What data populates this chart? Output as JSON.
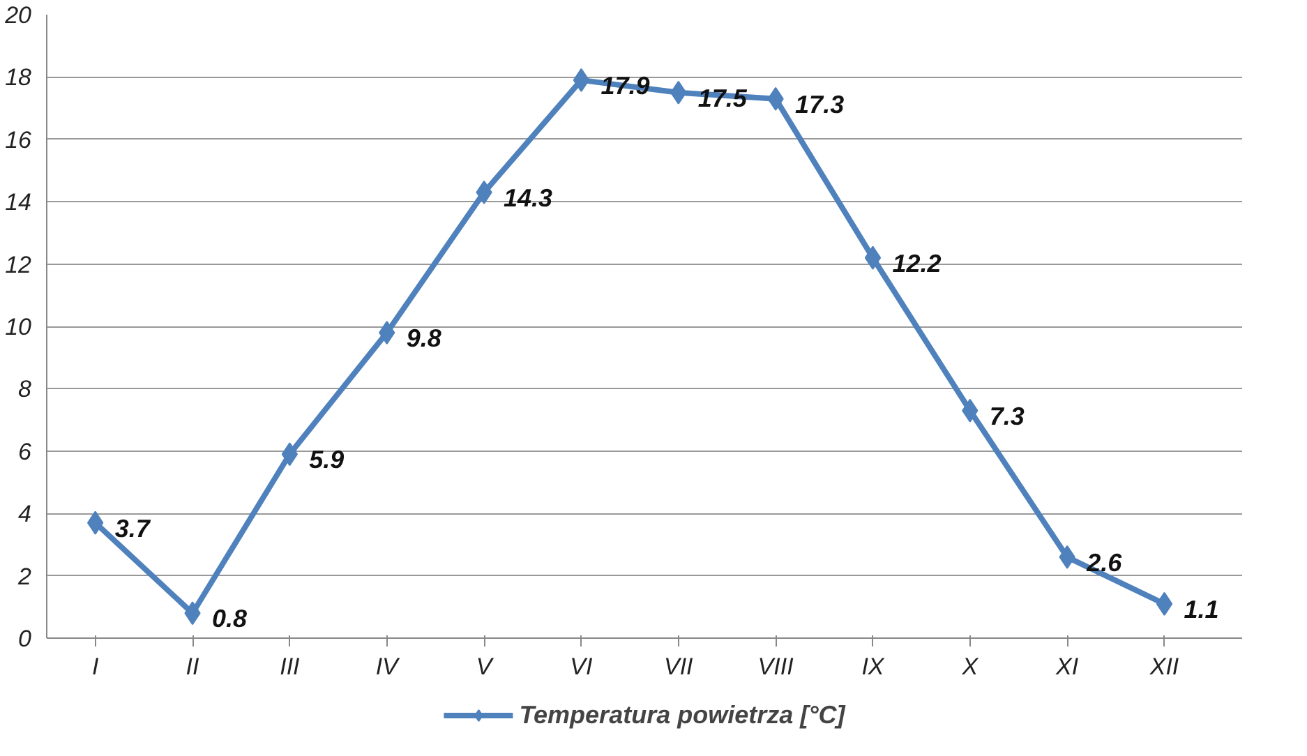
{
  "chart_data": {
    "type": "line",
    "categories": [
      "I",
      "II",
      "III",
      "IV",
      "V",
      "VI",
      "VII",
      "VIII",
      "IX",
      "X",
      "XI",
      "XII"
    ],
    "series": [
      {
        "name": "Temperatura powietrza [°C]",
        "color": "#4f81bd",
        "values": [
          3.7,
          0.8,
          5.9,
          9.8,
          14.3,
          17.9,
          17.5,
          17.3,
          12.2,
          7.3,
          2.6,
          1.1
        ]
      }
    ],
    "ylim": [
      0,
      20
    ],
    "yticks": [
      0,
      2,
      4,
      6,
      8,
      10,
      12,
      14,
      16,
      18,
      20
    ],
    "grid": "y",
    "legend": "bottom",
    "marker": "diamond",
    "line_style": "solid",
    "data_labels": true
  }
}
